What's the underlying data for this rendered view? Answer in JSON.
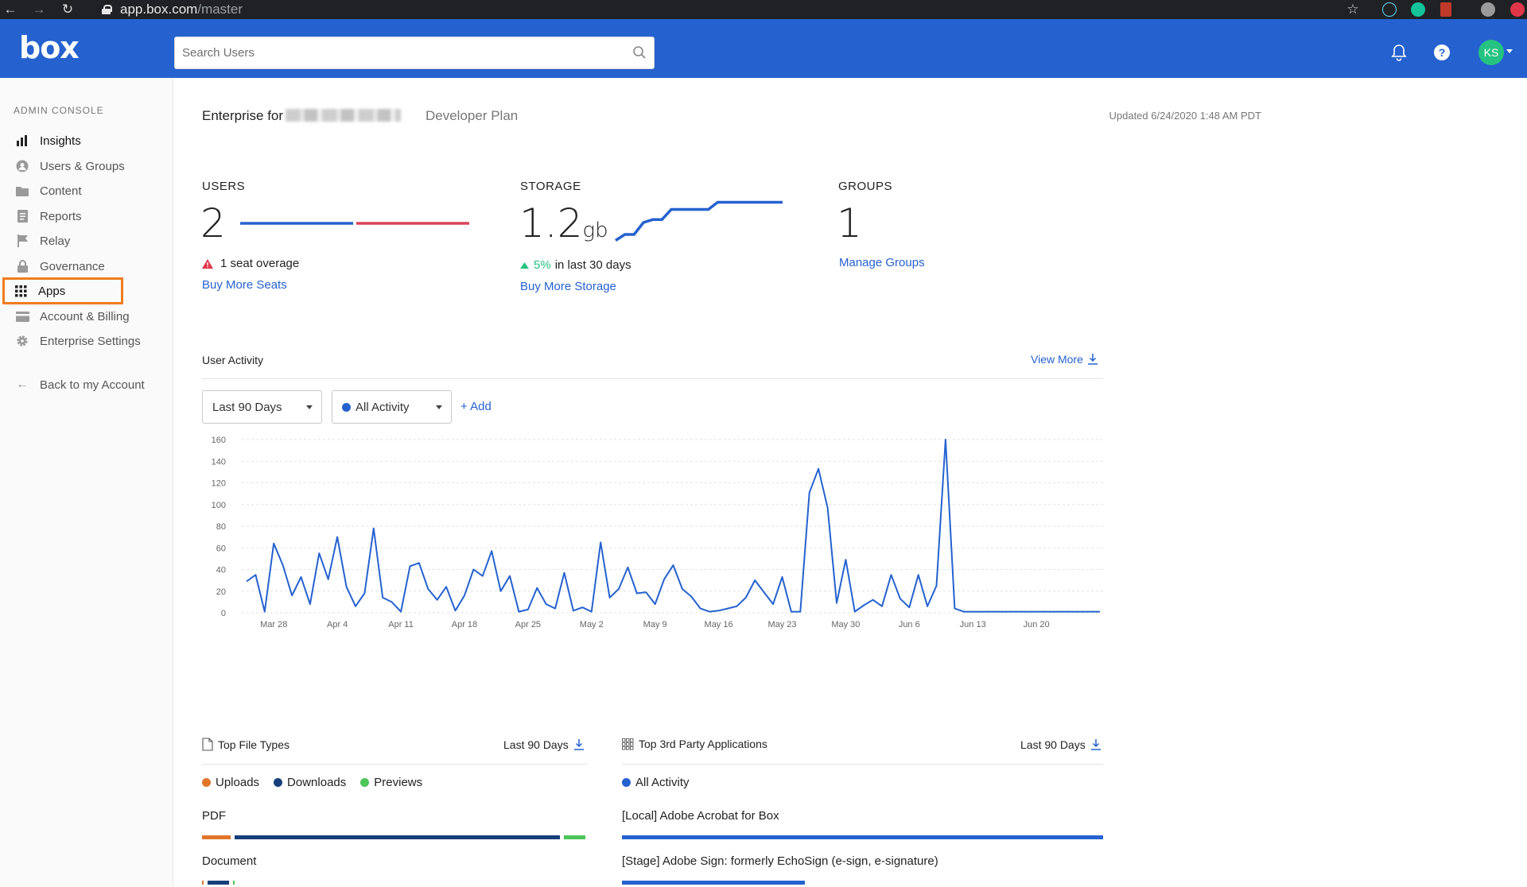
{
  "browser": {
    "domain": "app.box.com",
    "path": "/master"
  },
  "header": {
    "logo": "box",
    "search_placeholder": "Search Users",
    "avatar_initials": "KS"
  },
  "sidebar": {
    "section_title": "ADMIN CONSOLE",
    "items": [
      {
        "label": "Insights",
        "icon": "bar-chart-icon"
      },
      {
        "label": "Users & Groups",
        "icon": "user-circle-icon"
      },
      {
        "label": "Content",
        "icon": "folder-icon"
      },
      {
        "label": "Reports",
        "icon": "report-icon"
      },
      {
        "label": "Relay",
        "icon": "flag-icon"
      },
      {
        "label": "Governance",
        "icon": "lock-icon"
      },
      {
        "label": "Apps",
        "icon": "grid-icon"
      },
      {
        "label": "Account & Billing",
        "icon": "card-icon"
      },
      {
        "label": "Enterprise Settings",
        "icon": "gear-icon"
      }
    ],
    "back_label": "Back to my Account"
  },
  "main": {
    "enterprise_prefix": "Enterprise for",
    "plan": "Developer Plan",
    "updated": "Updated 6/24/2020 1:48 AM PDT",
    "users": {
      "label": "USERS",
      "value": "2",
      "alert": "1 seat overage",
      "link": "Buy More Seats"
    },
    "storage": {
      "label": "STORAGE",
      "value": "1.2",
      "unit": "gb",
      "change": "5%",
      "change_suffix": "in last 30 days",
      "link": "Buy More Storage"
    },
    "groups": {
      "label": "GROUPS",
      "value": "1",
      "link": "Manage Groups"
    },
    "activity": {
      "title": "User Activity",
      "view_more": "View More",
      "range_select": "Last 90 Days",
      "type_select": "All Activity",
      "add_label": "+ Add"
    },
    "file_types": {
      "title": "Top File Types",
      "range": "Last 90 Days",
      "legend": [
        "Uploads",
        "Downloads",
        "Previews"
      ],
      "rows": [
        {
          "label": "PDF",
          "uploads": 0.075,
          "downloads": 0.845,
          "previews": 0.055
        },
        {
          "label": "Document",
          "uploads": 0.003,
          "downloads": 0.055,
          "previews": 0.003
        }
      ]
    },
    "apps": {
      "title": "Top 3rd Party Applications",
      "range": "Last 90 Days",
      "legend": [
        "All Activity"
      ],
      "rows": [
        {
          "label": "[Local] Adobe Acrobat for Box",
          "value": 1.0
        },
        {
          "label": "[Stage] Adobe Sign: formerly EchoSign (e-sign, e-signature)",
          "value": 0.38
        }
      ]
    }
  },
  "colors": {
    "brand": "#2562cf",
    "uploads": "#e0762a",
    "downloads": "#163f7a",
    "previews": "#4dc65a",
    "alert": "#e0364a",
    "up": "#26c281"
  },
  "chart_data": {
    "type": "line",
    "title": "User Activity",
    "xlabel": "",
    "ylabel": "",
    "ylim": [
      0,
      160
    ],
    "yticks": [
      0,
      20,
      40,
      60,
      80,
      100,
      120,
      140,
      160
    ],
    "xticks": [
      "Mar 28",
      "Apr 4",
      "Apr 11",
      "Apr 18",
      "Apr 25",
      "May 2",
      "May 9",
      "May 16",
      "May 23",
      "May 30",
      "Jun 6",
      "Jun 13",
      "Jun 20"
    ],
    "x_start": "Mar 28",
    "x_start_offset_days": -3,
    "x_step_days": 1,
    "series": [
      {
        "name": "All Activity",
        "values": [
          29,
          35,
          1,
          64,
          44,
          16,
          33,
          8,
          55,
          31,
          70,
          24,
          6,
          18,
          78,
          14,
          10,
          1,
          43,
          46,
          22,
          12,
          24,
          2,
          16,
          40,
          34,
          57,
          20,
          34,
          1,
          3,
          23,
          8,
          4,
          37,
          2,
          5,
          1,
          65,
          14,
          22,
          42,
          18,
          19,
          8,
          31,
          44,
          22,
          15,
          4,
          1,
          2,
          4,
          6,
          14,
          30,
          19,
          8,
          33,
          1,
          1,
          111,
          133,
          97,
          9,
          49,
          1,
          7,
          12,
          6,
          35,
          13,
          5,
          35,
          6,
          25,
          160,
          4,
          1,
          1,
          1,
          1,
          1,
          1,
          1,
          1,
          1,
          1,
          1,
          1,
          1,
          1,
          1,
          1
        ]
      }
    ],
    "users_bar": {
      "assigned": 1,
      "overage": 1
    },
    "storage_trend": [
      0.1,
      0.2,
      0.2,
      0.4,
      0.45,
      0.45,
      0.62,
      0.62,
      0.62,
      0.62,
      0.62,
      0.74,
      0.74,
      0.74,
      0.74,
      0.74,
      0.74,
      0.74,
      0.74
    ]
  }
}
